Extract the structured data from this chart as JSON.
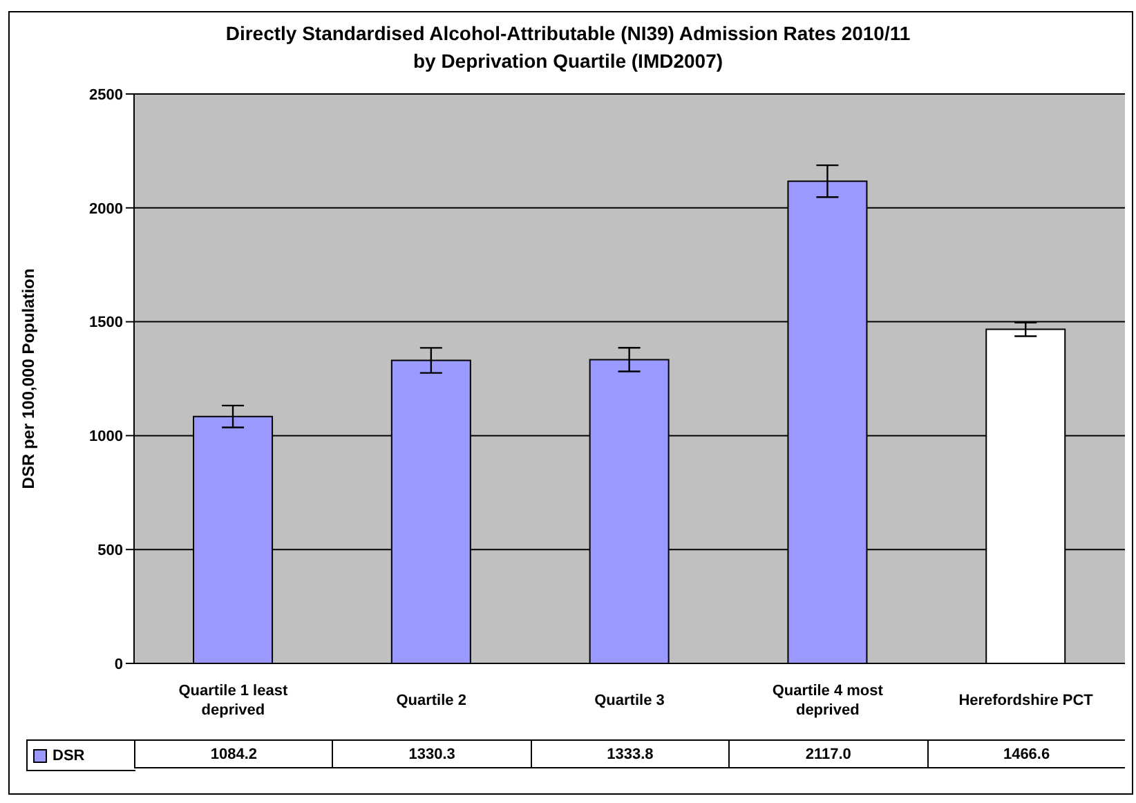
{
  "chart_data": {
    "type": "bar",
    "title": "Directly Standardised Alcohol-Attributable (NI39) Admission Rates 2010/11\nby Deprivation Quartile (IMD2007)",
    "ylabel": "DSR per 100,000 Population",
    "categories": [
      "Quartile 1 least deprived",
      "Quartile 2",
      "Quartile 3",
      "Quartile 4 most deprived",
      "Herefordshire PCT"
    ],
    "series": [
      {
        "name": "DSR",
        "color": "#9999ff",
        "colors": [
          "#9999ff",
          "#9999ff",
          "#9999ff",
          "#9999ff",
          "#ffffff"
        ],
        "values": [
          1084.2,
          1330.3,
          1333.8,
          2117.0,
          1466.6
        ],
        "errors": [
          48,
          55,
          52,
          70,
          30
        ],
        "value_labels": [
          "1084.2",
          "1330.3",
          "1333.8",
          "2117.0",
          "1466.6"
        ]
      }
    ],
    "ylim": [
      0,
      2500
    ],
    "yticks": [
      0,
      500,
      1000,
      1500,
      2000,
      2500
    ],
    "grid": "y",
    "legend": "bottom"
  }
}
